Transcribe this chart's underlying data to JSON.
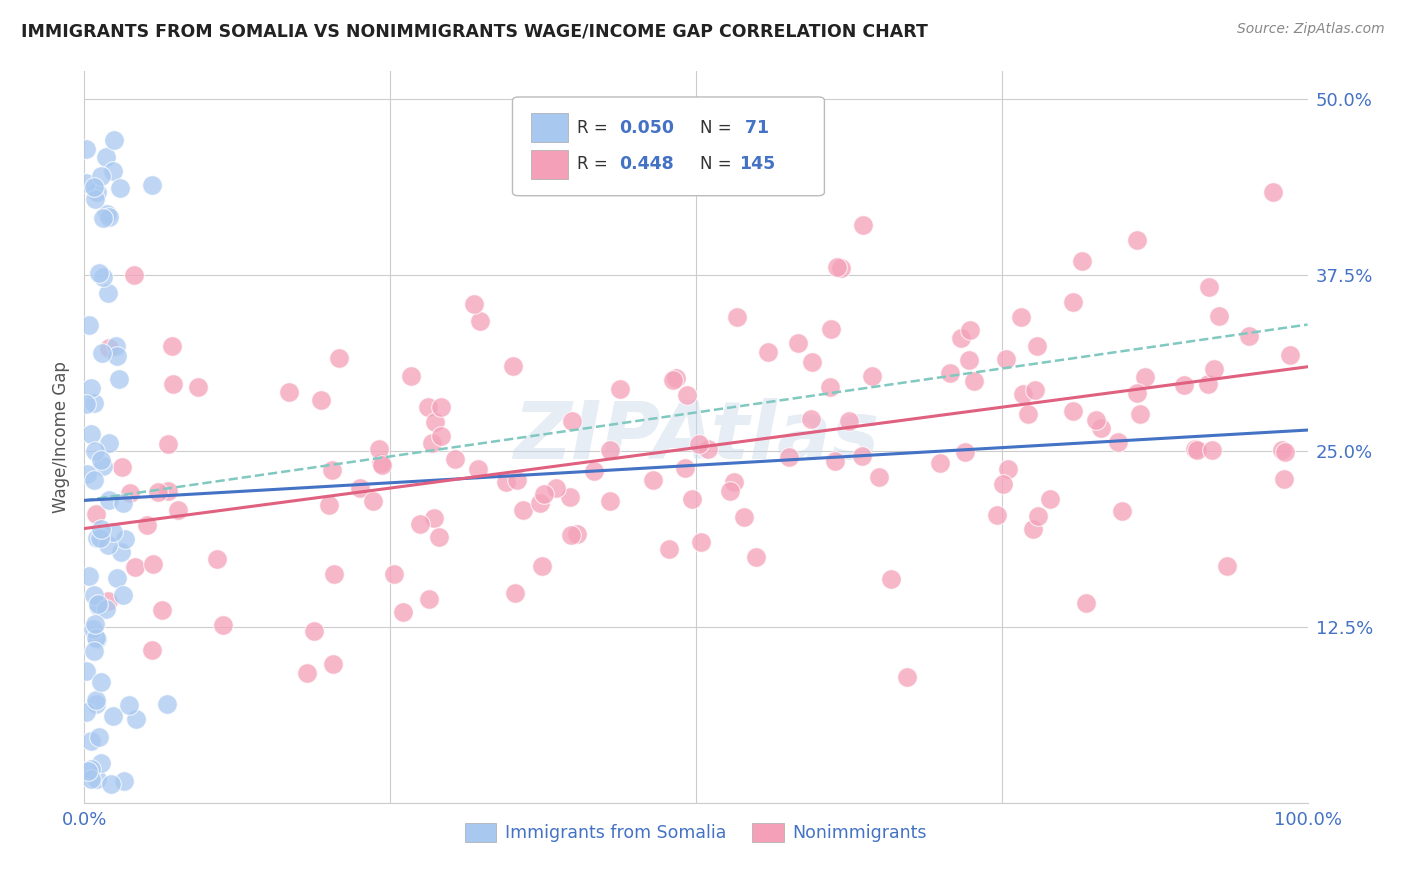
{
  "title": "IMMIGRANTS FROM SOMALIA VS NONIMMIGRANTS WAGE/INCOME GAP CORRELATION CHART",
  "source": "Source: ZipAtlas.com",
  "ylabel": "Wage/Income Gap",
  "y_ticks": [
    0.0,
    0.125,
    0.25,
    0.375,
    0.5
  ],
  "y_tick_labels": [
    "",
    "12.5%",
    "25.0%",
    "37.5%",
    "50.0%"
  ],
  "blue_color": "#A8C8F0",
  "pink_color": "#F4A0B8",
  "blue_line_color": "#4472C4",
  "pink_line_color": "#E06080",
  "dashed_line_color": "#80C8C0",
  "title_color": "#222222",
  "axis_label_color": "#4472C4",
  "background_color": "#FFFFFF",
  "grid_color": "#CCCCCC",
  "blue_n": 71,
  "pink_n": 145,
  "blue_R": 0.05,
  "pink_R": 0.448,
  "watermark": "ZIPAtlas"
}
